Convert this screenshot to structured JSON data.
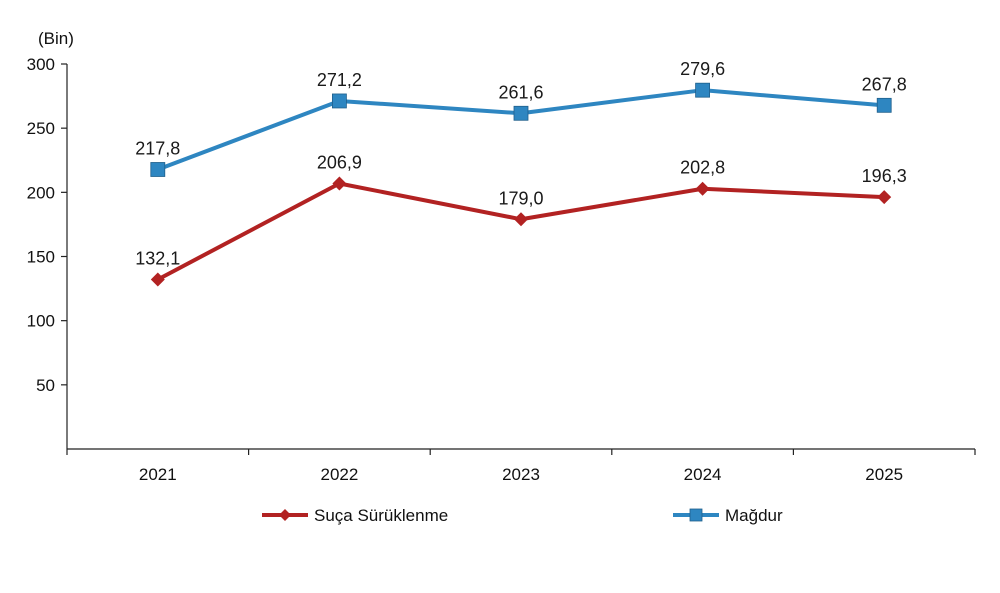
{
  "chart_data": {
    "type": "line",
    "unit_label": "(Bin)",
    "categories": [
      "2021",
      "2022",
      "2023",
      "2024",
      "2025"
    ],
    "ylim": [
      0,
      300
    ],
    "yticks": [
      50,
      100,
      150,
      200,
      250,
      300
    ],
    "ytick_labels": [
      "50",
      "100",
      "150",
      "200",
      "250",
      "300"
    ],
    "grid": false,
    "legend_position": "bottom",
    "series": [
      {
        "name": "Suça Sürüklenme",
        "color": "#b22222",
        "marker": "diamond",
        "values": [
          132.1,
          206.9,
          179.0,
          202.8,
          196.3
        ],
        "labels": [
          "132,1",
          "206,9",
          "179,0",
          "202,8",
          "196,3"
        ]
      },
      {
        "name": "Mağdur",
        "color": "#2e86c1",
        "marker": "square",
        "values": [
          217.8,
          271.2,
          261.6,
          279.6,
          267.8
        ],
        "labels": [
          "217,8",
          "271,2",
          "261,6",
          "279,6",
          "267,8"
        ]
      }
    ]
  }
}
